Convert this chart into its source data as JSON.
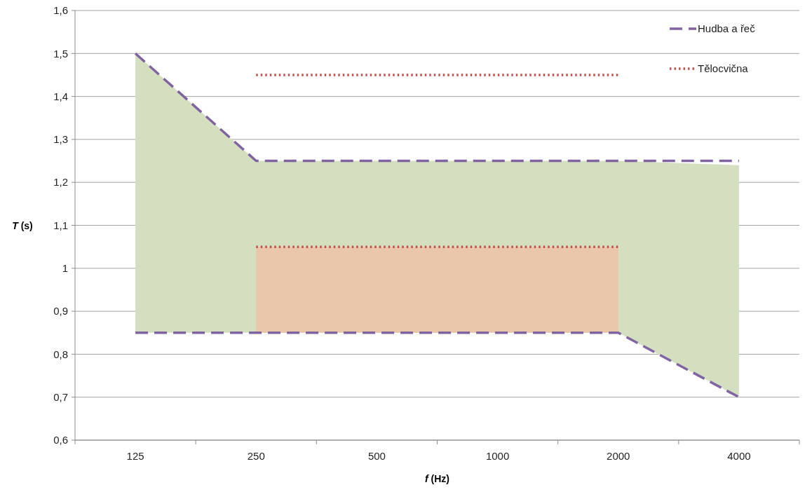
{
  "chart_data": {
    "type": "line",
    "xlabel": "f (Hz)",
    "ylabel": "T (s)",
    "categories": [
      "125",
      "250",
      "500",
      "1000",
      "2000",
      "4000"
    ],
    "ylim": [
      0.6,
      1.6
    ],
    "yticks": [
      {
        "value": 0.6,
        "label": "0,6"
      },
      {
        "value": 0.7,
        "label": "0,7"
      },
      {
        "value": 0.8,
        "label": "0,8"
      },
      {
        "value": 0.9,
        "label": "0,9"
      },
      {
        "value": 1,
        "label": "1"
      },
      {
        "value": 1.1,
        "label": "1,1"
      },
      {
        "value": 1.2,
        "label": "1,2"
      },
      {
        "value": 1.3,
        "label": "1,3"
      },
      {
        "value": 1.4,
        "label": "1,4"
      },
      {
        "value": 1.5,
        "label": "1,5"
      },
      {
        "value": 1.6,
        "label": "1,6"
      }
    ],
    "grid": "y",
    "legend": "top right",
    "series": [
      {
        "name": "Hudba a řeč",
        "color": "#8064a2",
        "line_style": "dashed",
        "values": [
          1.5,
          1.25,
          1.25,
          1.25,
          1.25,
          1.25
        ],
        "lower": [
          0.85,
          0.85,
          0.85,
          0.85,
          0.85,
          0.7
        ],
        "upper": [
          1.5,
          1.25,
          1.25,
          1.25,
          1.25,
          1.24
        ]
      },
      {
        "color": "#8064a2",
        "line_style": "dashed",
        "values": [
          0.85,
          0.85,
          0.85,
          0.85,
          0.85,
          0.7
        ]
      },
      {
        "name": "Tělocvična",
        "color": "#c0504d",
        "line_style": "dotted",
        "values": [
          null,
          1.45,
          1.45,
          1.45,
          1.45,
          null
        ]
      },
      {
        "color": "#c0504d",
        "line_style": "dotted",
        "values": [
          null,
          1.05,
          1.05,
          1.05,
          1.05,
          null
        ],
        "lower": [
          null,
          0.85,
          0.85,
          0.85,
          0.85,
          null
        ],
        "upper": [
          null,
          1.05,
          1.05,
          1.05,
          1.05,
          null
        ]
      }
    ]
  }
}
